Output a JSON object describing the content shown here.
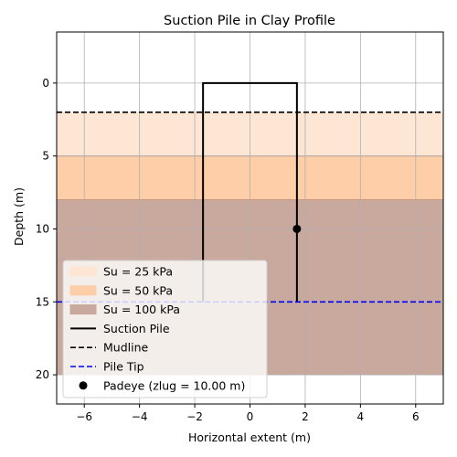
{
  "chart_data": {
    "type": "line",
    "title": "Suction Pile in Clay Profile",
    "xlabel": "Horizontal extent (m)",
    "ylabel": "Depth (m)",
    "xlim": [
      -7,
      7
    ],
    "ylim": [
      22,
      -3.5
    ],
    "y_inverted": true,
    "grid": true,
    "x_ticks": [
      -6,
      -4,
      -2,
      0,
      2,
      4,
      6
    ],
    "x_tick_labels": [
      "−6",
      "−4",
      "−2",
      "0",
      "2",
      "4",
      "6"
    ],
    "y_ticks": [
      0,
      5,
      10,
      15,
      20
    ],
    "y_tick_labels": [
      "0",
      "5",
      "10",
      "15",
      "20"
    ],
    "layers": [
      {
        "name": "Su = 25 kPa",
        "top": 2,
        "bottom": 5,
        "color": "#fde6d3"
      },
      {
        "name": "Su = 50 kPa",
        "top": 5,
        "bottom": 8,
        "color": "#fdcea8"
      },
      {
        "name": "Su = 100 kPa",
        "top": 8,
        "bottom": 20,
        "color": "#c9a89d"
      }
    ],
    "series": [
      {
        "name": "Suction Pile",
        "style": "solid",
        "color": "#000000",
        "x": [
          -1.7,
          -1.7,
          1.7,
          1.7
        ],
        "y": [
          15,
          0,
          0,
          15
        ]
      },
      {
        "name": "Mudline",
        "style": "dashed",
        "color": "#000000",
        "x": [
          -7,
          7
        ],
        "y": [
          2,
          2
        ]
      },
      {
        "name": "Pile Tip",
        "style": "dashed",
        "color": "#0000ff",
        "x": [
          -7,
          7
        ],
        "y": [
          15,
          15
        ]
      }
    ],
    "points": [
      {
        "name": "Padeye (zlug = 10.00 m)",
        "x": 1.7,
        "y": 10,
        "color": "#000000"
      }
    ],
    "legend": {
      "placement": "lower-left",
      "entries": [
        {
          "label": "Su = 25 kPa",
          "kind": "patch",
          "color": "#fde6d3"
        },
        {
          "label": "Su = 50 kPa",
          "kind": "patch",
          "color": "#fdcea8"
        },
        {
          "label": "Su = 100 kPa",
          "kind": "patch",
          "color": "#c9a89d"
        },
        {
          "label": "Suction Pile",
          "kind": "line",
          "style": "solid",
          "color": "#000000"
        },
        {
          "label": "Mudline",
          "kind": "line",
          "style": "dashed",
          "color": "#000000"
        },
        {
          "label": "Pile Tip",
          "kind": "line",
          "style": "dashed",
          "color": "#0000ff"
        },
        {
          "label": "Padeye (zlug = 10.00 m)",
          "kind": "marker",
          "color": "#000000"
        }
      ]
    }
  }
}
